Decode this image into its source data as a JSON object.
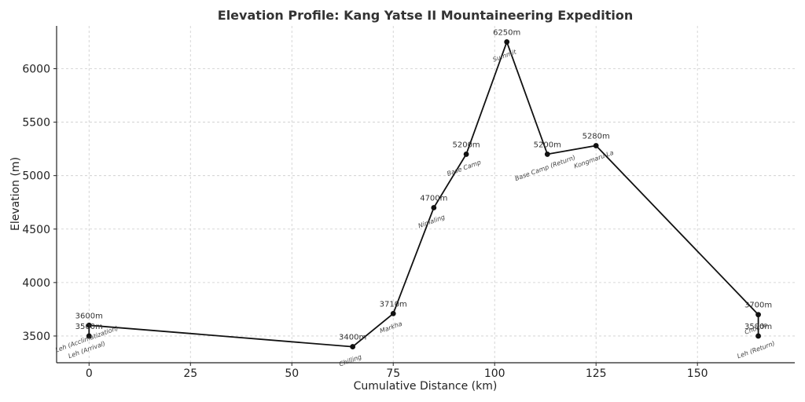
{
  "chart_data": {
    "type": "line",
    "title": "Elevation Profile: Kang Yatse II Mountaineering Expedition",
    "xlabel": "Cumulative Distance (km)",
    "ylabel": "Elevation (m)",
    "xlim": [
      -8,
      174
    ],
    "ylim": [
      3250,
      6400
    ],
    "xticks": [
      0,
      25,
      50,
      75,
      100,
      125,
      150
    ],
    "yticks": [
      3500,
      4000,
      4500,
      5000,
      5500,
      6000
    ],
    "grid": true,
    "points": [
      {
        "x": 0,
        "y": 3500,
        "label": "3500m",
        "location": "Leh (Arrival)"
      },
      {
        "x": 0,
        "y": 3600,
        "label": "3600m",
        "location": "Leh (Acclimatization)"
      },
      {
        "x": 65,
        "y": 3400,
        "label": "3400m",
        "location": "Chilling"
      },
      {
        "x": 75,
        "y": 3710,
        "label": "3710m",
        "location": "Markha"
      },
      {
        "x": 85,
        "y": 4700,
        "label": "4700m",
        "location": "Nimaling"
      },
      {
        "x": 93,
        "y": 5200,
        "label": "5200m",
        "location": "Base Camp"
      },
      {
        "x": 103,
        "y": 6250,
        "label": "6250m",
        "location": "Summit"
      },
      {
        "x": 113,
        "y": 5200,
        "label": "5200m",
        "location": "Base Camp (Return)"
      },
      {
        "x": 125,
        "y": 5280,
        "label": "5280m",
        "location": "Kongmaru La"
      },
      {
        "x": 165,
        "y": 3700,
        "label": "3700m",
        "location": "Chokdo"
      },
      {
        "x": 165,
        "y": 3500,
        "label": "3500m",
        "location": "Leh (Return)"
      }
    ]
  }
}
